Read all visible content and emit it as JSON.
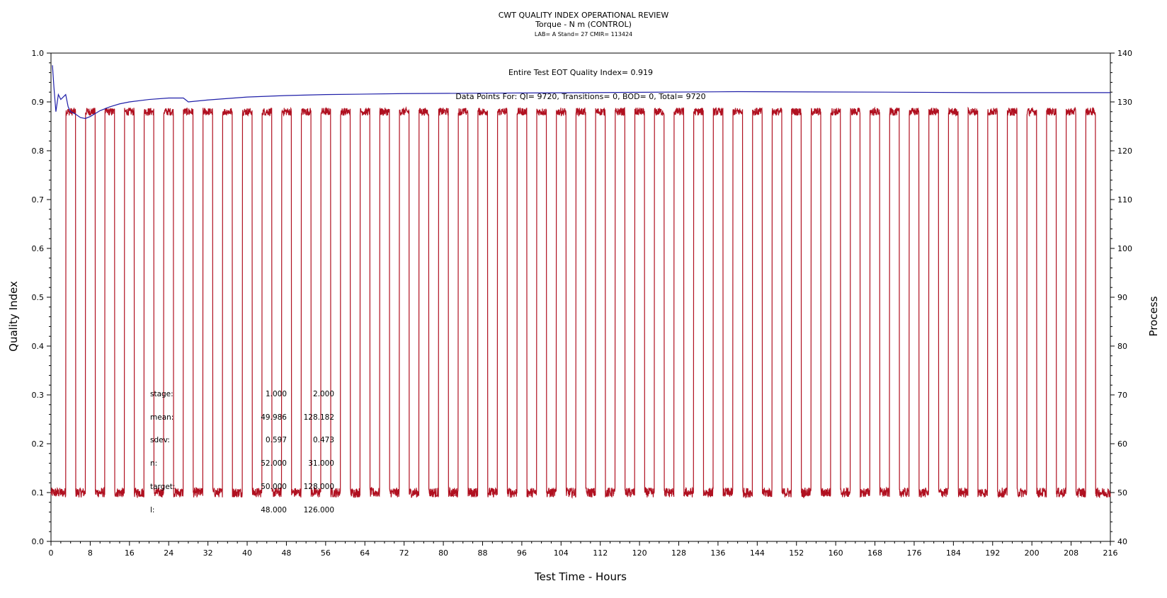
{
  "chart_data": {
    "type": "line",
    "title": "CWT QUALITY INDEX OPERATIONAL REVIEW",
    "subtitle": "Torque - N m (CONTROL)",
    "subsubtitle": "LAB= A Stand= 27 CMIR= 113424",
    "xlabel": "Test Time - Hours",
    "ylabel": "Quality Index",
    "y2label": "Process",
    "xlim": [
      0,
      216
    ],
    "ylim": [
      0,
      1
    ],
    "y2lim": [
      40,
      140
    ],
    "xticks": [
      "0",
      "8",
      "16",
      "24",
      "32",
      "40",
      "48",
      "56",
      "64",
      "72",
      "80",
      "88",
      "96",
      "104",
      "112",
      "120",
      "128",
      "136",
      "144",
      "152",
      "160",
      "168",
      "176",
      "184",
      "192",
      "200",
      "208",
      "216"
    ],
    "yticks": [
      "0.0",
      "0.1",
      "0.2",
      "0.3",
      "0.4",
      "0.5",
      "0.6",
      "0.7",
      "0.8",
      "0.9",
      "1.0"
    ],
    "y2ticks": [
      "40",
      "50",
      "60",
      "70",
      "80",
      "90",
      "100",
      "110",
      "120",
      "130",
      "140"
    ],
    "annotation_qi": "Entire Test EOT Quality Index=   0.919",
    "annotation_points": "Data Points For: QI=  9720, Transitions=     0, BOD=     0, Total=  9720",
    "series": [
      {
        "name": "Quality Index",
        "axis": "left",
        "color": "#1f1fa8",
        "x": [
          0.3,
          0.6,
          1.0,
          1.5,
          2.0,
          2.5,
          3.0,
          3.5,
          4.0,
          5.0,
          6.0,
          7.0,
          8.0,
          10.0,
          12.0,
          14.0,
          16.0,
          20.0,
          24.0,
          27.0,
          28.0,
          32.0,
          40.0,
          48.0,
          56.0,
          72.0,
          90.0,
          110.0,
          140.0,
          170.0,
          190.0,
          216.0
        ],
        "y": [
          0.975,
          0.93,
          0.88,
          0.915,
          0.905,
          0.91,
          0.915,
          0.89,
          0.88,
          0.875,
          0.868,
          0.866,
          0.87,
          0.882,
          0.89,
          0.896,
          0.9,
          0.905,
          0.908,
          0.908,
          0.9,
          0.904,
          0.91,
          0.913,
          0.915,
          0.917,
          0.918,
          0.919,
          0.921,
          0.92,
          0.919,
          0.919
        ]
      },
      {
        "name": "Process",
        "axis": "right",
        "color": "#b01020",
        "low_value": 50,
        "high_value": 128,
        "first_rise_hour": 3.0,
        "cycle_hours": 4.0,
        "high_hours": 2.0,
        "cycles": 53
      }
    ],
    "stats_table": {
      "rows": [
        {
          "label": "stage:",
          "v1": "1.000",
          "v2": "2.000"
        },
        {
          "label": "mean:",
          "v1": "49.986",
          "v2": "128.182"
        },
        {
          "label": "sdev:",
          "v1": "0.597",
          "v2": "0.473"
        },
        {
          "label": "n:",
          "v1": "52.000",
          "v2": "31.000"
        },
        {
          "label": "target:",
          "v1": "50.000",
          "v2": "128.000"
        },
        {
          "label": "l:",
          "v1": "48.000",
          "v2": "126.000"
        }
      ]
    }
  }
}
